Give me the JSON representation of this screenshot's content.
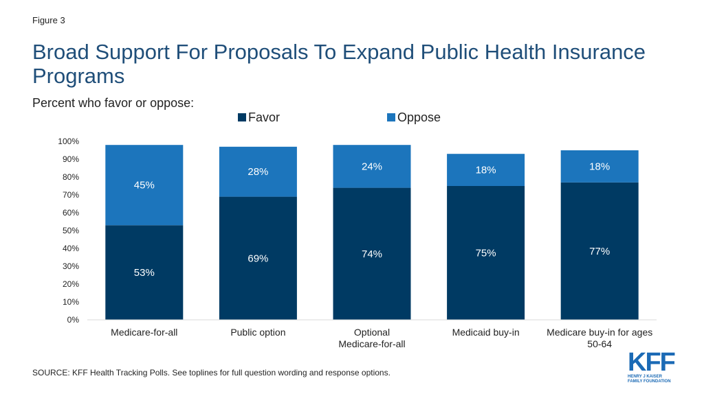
{
  "figure_label": "Figure 3",
  "title": "Broad Support For Proposals To Expand Public Health Insurance Programs",
  "subtitle": "Percent who favor or oppose:",
  "source": "SOURCE: KFF Health Tracking Polls. See toplines for full question wording and response options.",
  "logo": {
    "text": "KFF",
    "sub": [
      "HENRY J KAISER",
      "FAMILY FOUNDATION"
    ]
  },
  "colors": {
    "favor": "#003a63",
    "oppose": "#1c75bc"
  },
  "chart_data": {
    "type": "bar",
    "stacked": true,
    "categories": [
      "Medicare-for-all",
      "Public option",
      "Optional Medicare-for-all",
      "Medicaid buy-in",
      "Medicare buy-in for ages 50-64"
    ],
    "series": [
      {
        "name": "Favor",
        "values": [
          53,
          69,
          74,
          75,
          77
        ]
      },
      {
        "name": "Oppose",
        "values": [
          45,
          28,
          24,
          18,
          18
        ]
      }
    ],
    "data_labels": {
      "Favor": [
        "53%",
        "69%",
        "74%",
        "75%",
        "77%"
      ],
      "Oppose": [
        "45%",
        "28%",
        "24%",
        "18%",
        "18%"
      ]
    },
    "yticks": [
      "0%",
      "10%",
      "20%",
      "30%",
      "40%",
      "50%",
      "60%",
      "70%",
      "80%",
      "90%",
      "100%"
    ],
    "ylim": [
      0,
      100
    ],
    "legend_position": "top",
    "grid": false
  }
}
